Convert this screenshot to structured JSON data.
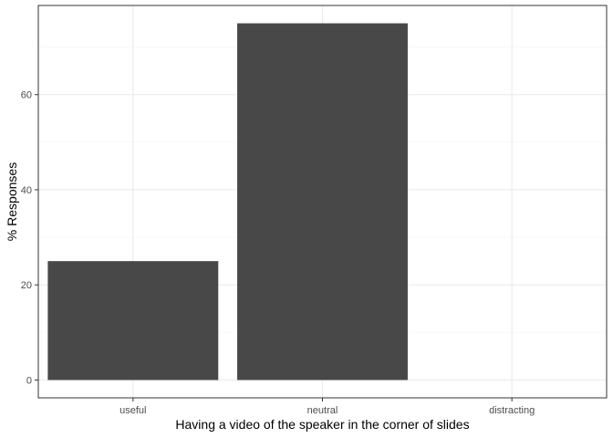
{
  "chart_data": {
    "type": "bar",
    "categories": [
      "useful",
      "neutral",
      "distracting"
    ],
    "values": [
      25,
      75,
      0
    ],
    "title": "",
    "xlabel": "Having a video of the speaker in the corner of slides",
    "ylabel": "% Responses",
    "ylim": [
      -3.75,
      78.75
    ],
    "yticks": [
      0,
      20,
      40,
      60
    ],
    "grid": true,
    "legend": "none",
    "colors": {
      "bar": "#484848",
      "panel_background": "#ffffff",
      "grid_major": "#ebebeb",
      "grid_minor": "#f5f5f5",
      "panel_border": "#333333",
      "tick_text": "#4d4d4d"
    }
  }
}
